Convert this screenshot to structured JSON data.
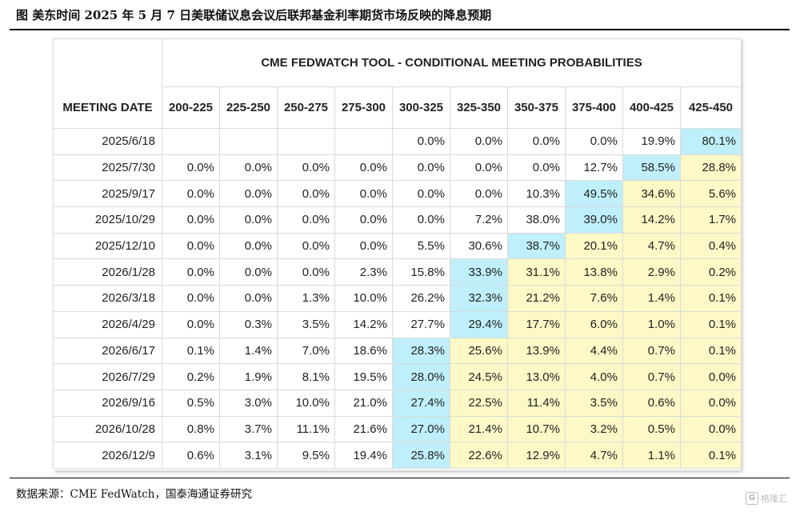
{
  "figure_title": "图  美东时间 2025 年 5 月 7 日美联储议息会议后联邦基金利率期货市场反映的降息预期",
  "source": "数据来源：CME FedWatch，国泰海通证券研究",
  "watermark": {
    "text": "格隆汇"
  },
  "colors": {
    "highlight_yellow": "#fdf9c7",
    "highlight_cyan": "#bfeffa",
    "rule": "#000000",
    "grid": "#d9d9d9"
  },
  "chart_data": {
    "type": "table",
    "title": "CME FEDWATCH TOOL - CONDITIONAL MEETING PROBABILITIES",
    "row_header": "MEETING DATE",
    "columns": [
      "200-225",
      "225-250",
      "250-275",
      "275-300",
      "300-325",
      "325-350",
      "350-375",
      "375-400",
      "400-425",
      "425-450"
    ],
    "rows": [
      {
        "date": "2025/6/18",
        "values": [
          "",
          "",
          "",
          "",
          "0.0%",
          "0.0%",
          "0.0%",
          "0.0%",
          "19.9%",
          "80.1%"
        ],
        "highlight": [
          null,
          null,
          null,
          null,
          null,
          null,
          null,
          null,
          null,
          "cyan"
        ]
      },
      {
        "date": "2025/7/30",
        "values": [
          "0.0%",
          "0.0%",
          "0.0%",
          "0.0%",
          "0.0%",
          "0.0%",
          "0.0%",
          "12.7%",
          "58.5%",
          "28.8%"
        ],
        "highlight": [
          null,
          null,
          null,
          null,
          null,
          null,
          null,
          null,
          "cyan",
          "yellow"
        ]
      },
      {
        "date": "2025/9/17",
        "values": [
          "0.0%",
          "0.0%",
          "0.0%",
          "0.0%",
          "0.0%",
          "0.0%",
          "10.3%",
          "49.5%",
          "34.6%",
          "5.6%"
        ],
        "highlight": [
          null,
          null,
          null,
          null,
          null,
          null,
          null,
          "cyan",
          "yellow",
          "yellow"
        ]
      },
      {
        "date": "2025/10/29",
        "values": [
          "0.0%",
          "0.0%",
          "0.0%",
          "0.0%",
          "0.0%",
          "7.2%",
          "38.0%",
          "39.0%",
          "14.2%",
          "1.7%"
        ],
        "highlight": [
          null,
          null,
          null,
          null,
          null,
          null,
          null,
          "cyan",
          "yellow",
          "yellow"
        ]
      },
      {
        "date": "2025/12/10",
        "values": [
          "0.0%",
          "0.0%",
          "0.0%",
          "0.0%",
          "5.5%",
          "30.6%",
          "38.7%",
          "20.1%",
          "4.7%",
          "0.4%"
        ],
        "highlight": [
          null,
          null,
          null,
          null,
          null,
          null,
          "cyan",
          "yellow",
          "yellow",
          "yellow"
        ]
      },
      {
        "date": "2026/1/28",
        "values": [
          "0.0%",
          "0.0%",
          "0.0%",
          "2.3%",
          "15.8%",
          "33.9%",
          "31.1%",
          "13.8%",
          "2.9%",
          "0.2%"
        ],
        "highlight": [
          null,
          null,
          null,
          null,
          null,
          "cyan",
          "yellow",
          "yellow",
          "yellow",
          "yellow"
        ]
      },
      {
        "date": "2026/3/18",
        "values": [
          "0.0%",
          "0.0%",
          "1.3%",
          "10.0%",
          "26.2%",
          "32.3%",
          "21.2%",
          "7.6%",
          "1.4%",
          "0.1%"
        ],
        "highlight": [
          null,
          null,
          null,
          null,
          null,
          "cyan",
          "yellow",
          "yellow",
          "yellow",
          "yellow"
        ]
      },
      {
        "date": "2026/4/29",
        "values": [
          "0.0%",
          "0.3%",
          "3.5%",
          "14.2%",
          "27.7%",
          "29.4%",
          "17.7%",
          "6.0%",
          "1.0%",
          "0.1%"
        ],
        "highlight": [
          null,
          null,
          null,
          null,
          null,
          "cyan",
          "yellow",
          "yellow",
          "yellow",
          "yellow"
        ]
      },
      {
        "date": "2026/6/17",
        "values": [
          "0.1%",
          "1.4%",
          "7.0%",
          "18.6%",
          "28.3%",
          "25.6%",
          "13.9%",
          "4.4%",
          "0.7%",
          "0.1%"
        ],
        "highlight": [
          null,
          null,
          null,
          null,
          "cyan",
          "yellow",
          "yellow",
          "yellow",
          "yellow",
          "yellow"
        ]
      },
      {
        "date": "2026/7/29",
        "values": [
          "0.2%",
          "1.9%",
          "8.1%",
          "19.5%",
          "28.0%",
          "24.5%",
          "13.0%",
          "4.0%",
          "0.7%",
          "0.0%"
        ],
        "highlight": [
          null,
          null,
          null,
          null,
          "cyan",
          "yellow",
          "yellow",
          "yellow",
          "yellow",
          "yellow"
        ]
      },
      {
        "date": "2026/9/16",
        "values": [
          "0.5%",
          "3.0%",
          "10.0%",
          "21.0%",
          "27.4%",
          "22.5%",
          "11.4%",
          "3.5%",
          "0.6%",
          "0.0%"
        ],
        "highlight": [
          null,
          null,
          null,
          null,
          "cyan",
          "yellow",
          "yellow",
          "yellow",
          "yellow",
          "yellow"
        ]
      },
      {
        "date": "2026/10/28",
        "values": [
          "0.8%",
          "3.7%",
          "11.1%",
          "21.6%",
          "27.0%",
          "21.4%",
          "10.7%",
          "3.2%",
          "0.5%",
          "0.0%"
        ],
        "highlight": [
          null,
          null,
          null,
          null,
          "cyan",
          "yellow",
          "yellow",
          "yellow",
          "yellow",
          "yellow"
        ]
      },
      {
        "date": "2026/12/9",
        "values": [
          "0.6%",
          "3.1%",
          "9.5%",
          "19.4%",
          "25.8%",
          "22.6%",
          "12.9%",
          "4.7%",
          "1.1%",
          "0.1%"
        ],
        "highlight": [
          null,
          null,
          null,
          null,
          "cyan",
          "yellow",
          "yellow",
          "yellow",
          "yellow",
          "yellow"
        ]
      }
    ]
  }
}
